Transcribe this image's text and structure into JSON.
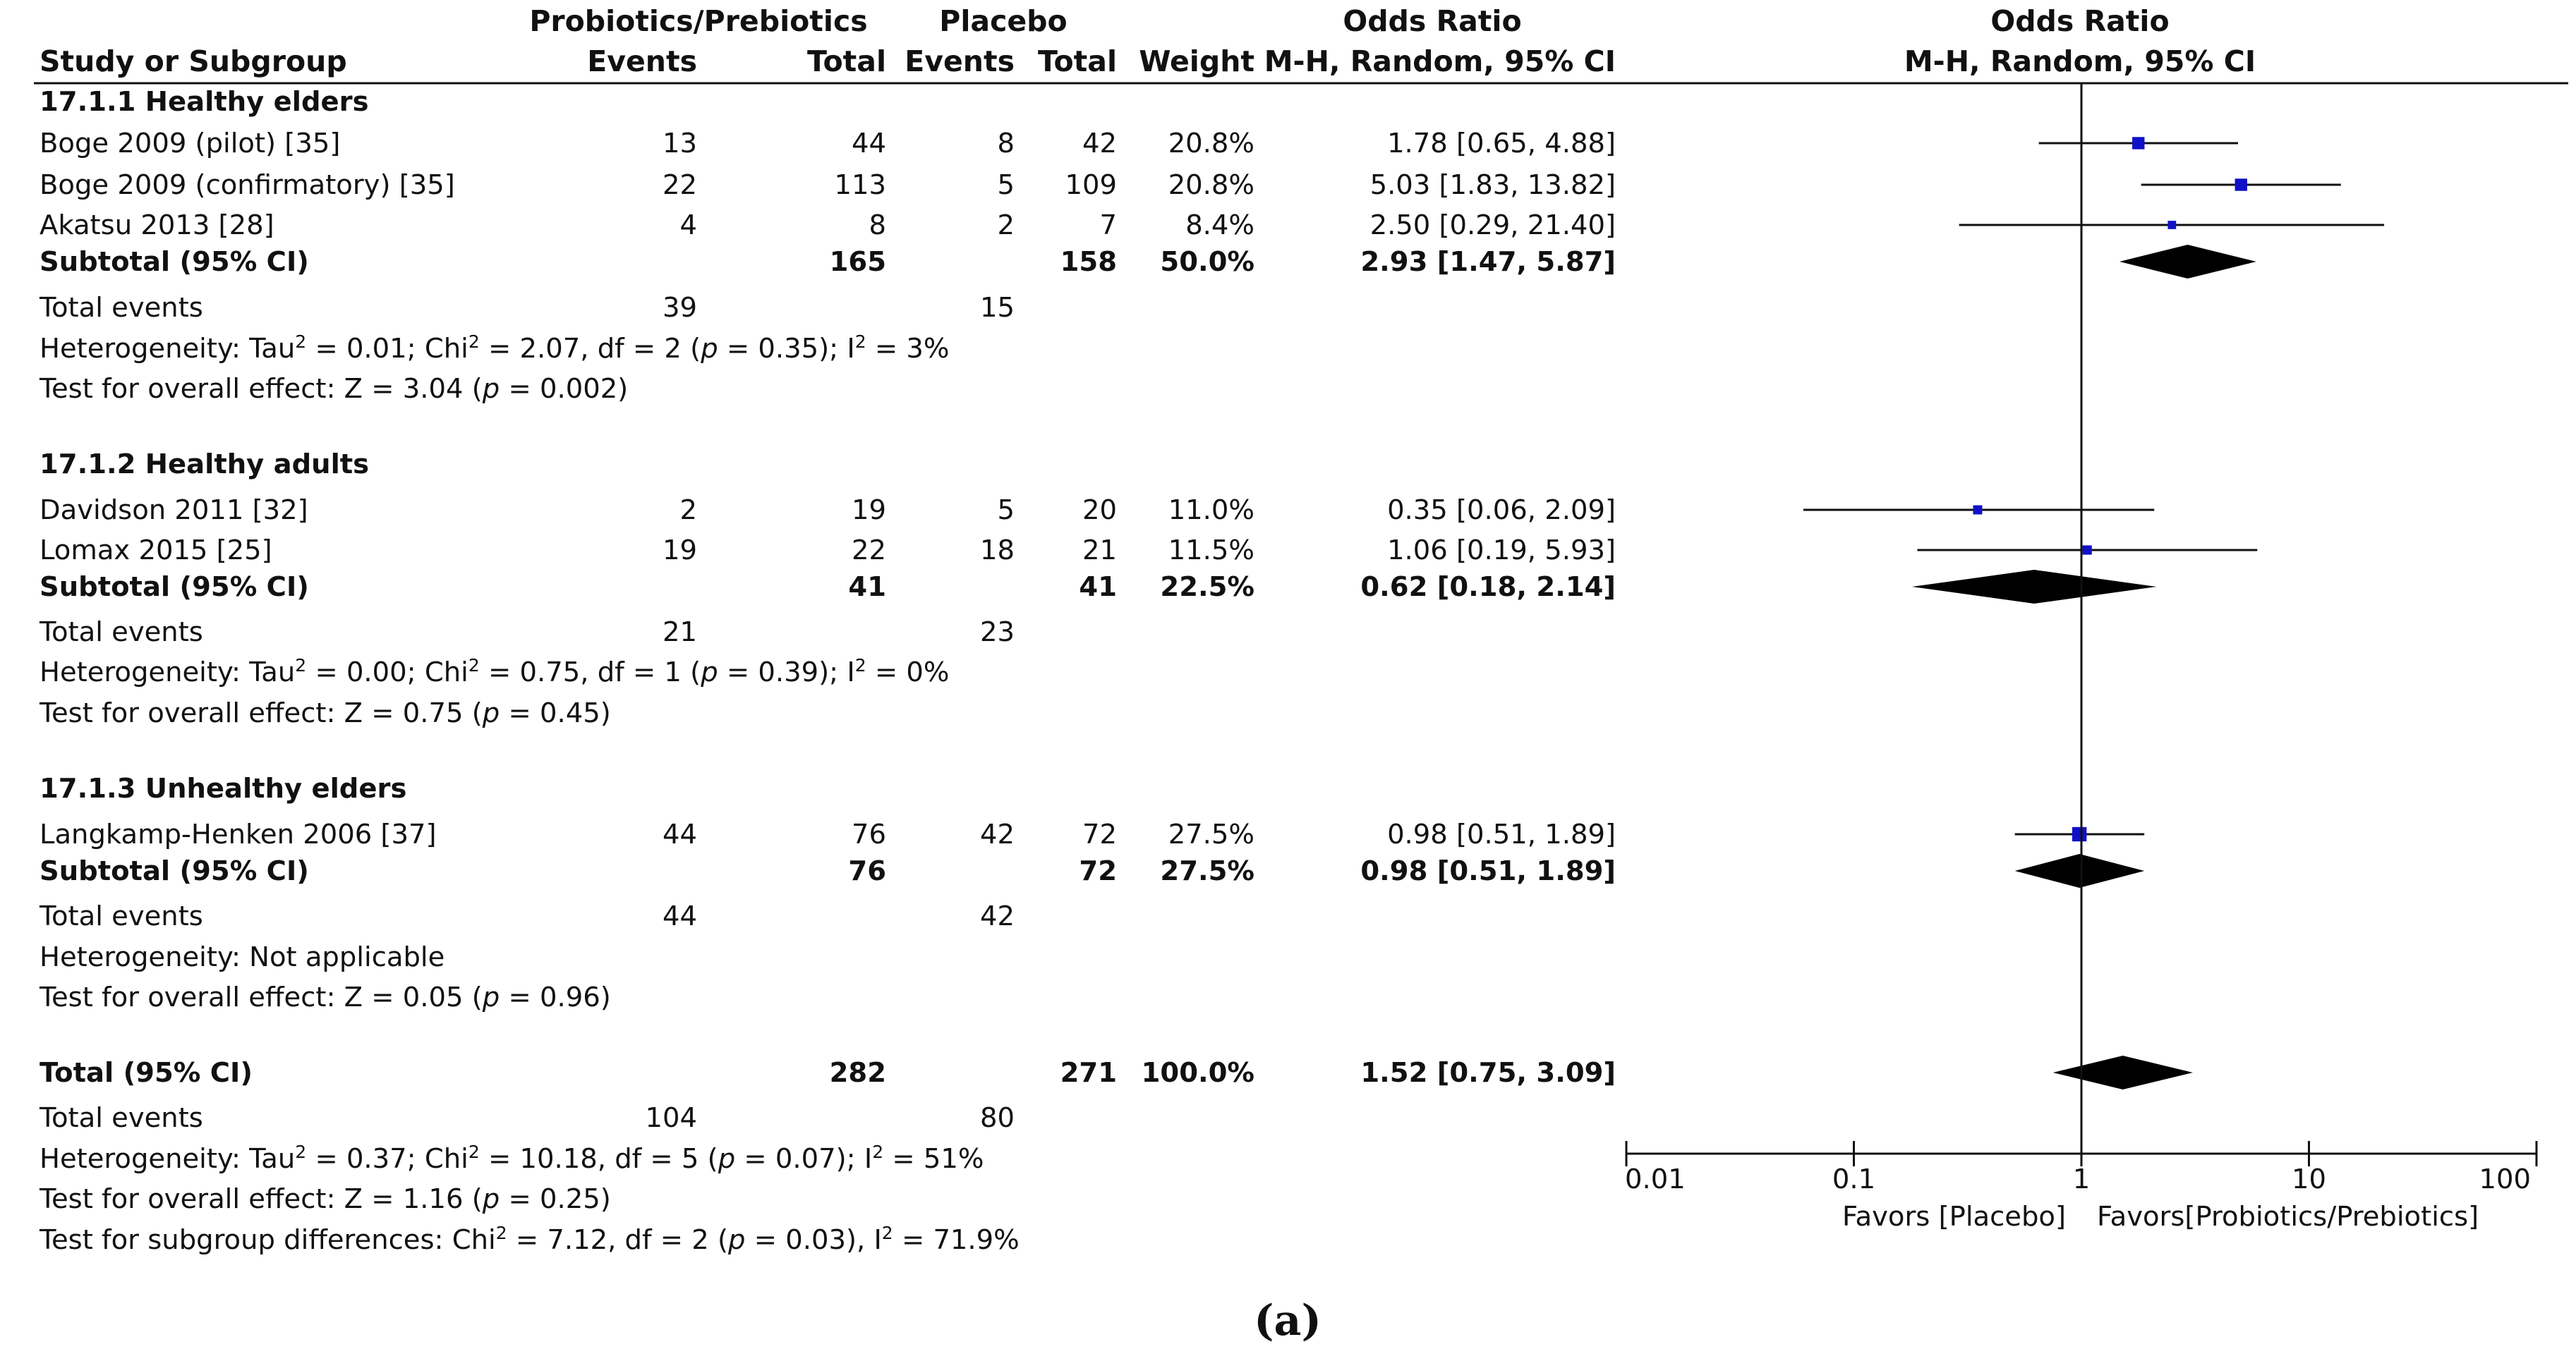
{
  "caption": "(a)",
  "header": {
    "group1_title": "Probiotics/Prebiotics",
    "group2_title": "Placebo",
    "or_title": "Odds Ratio",
    "plot_title": "Odds Ratio",
    "study_col": "Study or Subgroup",
    "events": "Events",
    "total": "Total",
    "weight": "Weight",
    "method": "M-H, Random, 95% CI",
    "plot_method": "M-H, Random, 95% CI"
  },
  "axis": {
    "ticks": [
      "0.01",
      "0.1",
      "1",
      "10",
      "100"
    ],
    "label_left": "Favors [Placebo]",
    "label_right": "Favors[Probiotics/Prebiotics]"
  },
  "marker_color": "#1010c8",
  "diamond_color": "#000000",
  "subgroups": [
    {
      "title": "17.1.1 Healthy elders",
      "studies": [
        {
          "name": "Boge 2009 (pilot) [35]",
          "e1": "13",
          "t1": "44",
          "e2": "8",
          "t2": "42",
          "weight": "20.8%",
          "ci_text": "1.78 [0.65, 4.88]"
        },
        {
          "name": "Boge 2009 (confirmatory) [35]",
          "e1": "22",
          "t1": "113",
          "e2": "5",
          "t2": "109",
          "weight": "20.8%",
          "ci_text": "5.03 [1.83, 13.82]"
        },
        {
          "name": "Akatsu 2013 [28]",
          "e1": "4",
          "t1": "8",
          "e2": "2",
          "t2": "7",
          "weight": "8.4%",
          "ci_text": "2.50 [0.29, 21.40]"
        }
      ],
      "subtotal": {
        "label": "Subtotal (95% CI)",
        "t1": "165",
        "t2": "158",
        "weight": "50.0%",
        "ci_text": "2.93 [1.47, 5.87]"
      },
      "events": {
        "label": "Total events",
        "e1": "39",
        "e2": "15"
      },
      "het": {
        "p1": "Heterogeneity: Tau",
        "sq1": "2",
        "p2": " = 0.01; Chi",
        "sq2": "2",
        "p3": " = 2.07, df = 2 (",
        "pv": "p",
        "p4": " = 0.35); I",
        "sq3": "2",
        "p5": " = 3%"
      },
      "effect": {
        "p1": "Test for overall effect: Z = 3.04 (",
        "pv": "p",
        "p2": " = 0.002)"
      }
    },
    {
      "title": "17.1.2 Healthy adults",
      "studies": [
        {
          "name": "Davidson 2011 [32]",
          "e1": "2",
          "t1": "19",
          "e2": "5",
          "t2": "20",
          "weight": "11.0%",
          "ci_text": "0.35 [0.06, 2.09]"
        },
        {
          "name": "Lomax 2015 [25]",
          "e1": "19",
          "t1": "22",
          "e2": "18",
          "t2": "21",
          "weight": "11.5%",
          "ci_text": "1.06 [0.19, 5.93]"
        }
      ],
      "subtotal": {
        "label": "Subtotal (95% CI)",
        "t1": "41",
        "t2": "41",
        "weight": "22.5%",
        "ci_text": "0.62 [0.18, 2.14]"
      },
      "events": {
        "label": "Total events",
        "e1": "21",
        "e2": "23"
      },
      "het": {
        "p1": "Heterogeneity: Tau",
        "sq1": "2",
        "p2": " = 0.00; Chi",
        "sq2": "2",
        "p3": " = 0.75, df = 1 (",
        "pv": "p",
        "p4": " = 0.39); I",
        "sq3": "2",
        "p5": " = 0%"
      },
      "effect": {
        "p1": "Test for overall effect: Z = 0.75 (",
        "pv": "p",
        "p2": " = 0.45)"
      }
    },
    {
      "title": "17.1.3 Unhealthy elders",
      "studies": [
        {
          "name": "Langkamp-Henken  2006 [37]",
          "e1": "44",
          "t1": "76",
          "e2": "42",
          "t2": "72",
          "weight": "27.5%",
          "ci_text": "0.98 [0.51, 1.89]"
        }
      ],
      "subtotal": {
        "label": "Subtotal (95% CI)",
        "t1": "76",
        "t2": "72",
        "weight": "27.5%",
        "ci_text": "0.98 [0.51, 1.89]"
      },
      "events": {
        "label": "Total events",
        "e1": "44",
        "e2": "42"
      },
      "het_plain": "Heterogeneity: Not applicable",
      "effect": {
        "p1": "Test for overall effect: Z = 0.05 (",
        "pv": "p",
        "p2": " = 0.96)"
      }
    }
  ],
  "overall": {
    "label": "Total (95% CI)",
    "t1": "282",
    "t2": "271",
    "weight": "100.0%",
    "ci_text": "1.52 [0.75, 3.09]",
    "events": {
      "label": "Total events",
      "e1": "104",
      "e2": "80"
    },
    "het": {
      "p1": "Heterogeneity: Tau",
      "sq1": "2",
      "p2": " = 0.37; Chi",
      "sq2": "2",
      "p3": " = 10.18, df = 5 (",
      "pv": "p",
      "p4": " = 0.07); I",
      "sq3": "2",
      "p5": " = 51%"
    },
    "effect": {
      "p1": "Test for overall effect: Z = 1.16 (",
      "pv": "p",
      "p2": " = 0.25)"
    },
    "subgroup": {
      "p1": "Test for subgroup differences: Chi",
      "sq1": "2",
      "p2": " = 7.12, df = 2 (",
      "pv": "p",
      "p3": " = 0.03), I",
      "sq2": "2",
      "p4": " = 71.9%"
    }
  },
  "chart_data": {
    "type": "forest",
    "title": "Odds Ratio",
    "method": "M-H, Random, 95% CI",
    "x_scale": "log",
    "xlim": [
      0.01,
      100
    ],
    "null_value": 1,
    "xlabel_left": "Favors [Placebo]",
    "xlabel_right": "Favors[Probiotics/Prebiotics]",
    "studies": [
      {
        "name": "Boge 2009 (pilot) [35]",
        "or": 1.78,
        "lo": 0.65,
        "hi": 4.88,
        "weight": 20.8
      },
      {
        "name": "Boge 2009 (confirmatory) [35]",
        "or": 5.03,
        "lo": 1.83,
        "hi": 13.82,
        "weight": 20.8
      },
      {
        "name": "Akatsu 2013 [28]",
        "or": 2.5,
        "lo": 0.29,
        "hi": 21.4,
        "weight": 8.4
      },
      {
        "name": "Davidson 2011 [32]",
        "or": 0.35,
        "lo": 0.06,
        "hi": 2.09,
        "weight": 11.0
      },
      {
        "name": "Lomax 2015 [25]",
        "or": 1.06,
        "lo": 0.19,
        "hi": 5.93,
        "weight": 11.5
      },
      {
        "name": "Langkamp-Henken  2006 [37]",
        "or": 0.98,
        "lo": 0.51,
        "hi": 1.89,
        "weight": 27.5
      }
    ],
    "pooled": [
      {
        "name": "Subtotal 17.1.1 Healthy elders",
        "or": 2.93,
        "lo": 1.47,
        "hi": 5.87
      },
      {
        "name": "Subtotal 17.1.2 Healthy adults",
        "or": 0.62,
        "lo": 0.18,
        "hi": 2.14
      },
      {
        "name": "Subtotal 17.1.3 Unhealthy elders",
        "or": 0.98,
        "lo": 0.51,
        "hi": 1.89
      },
      {
        "name": "Total (95% CI)",
        "or": 1.52,
        "lo": 0.75,
        "hi": 3.09
      }
    ]
  }
}
